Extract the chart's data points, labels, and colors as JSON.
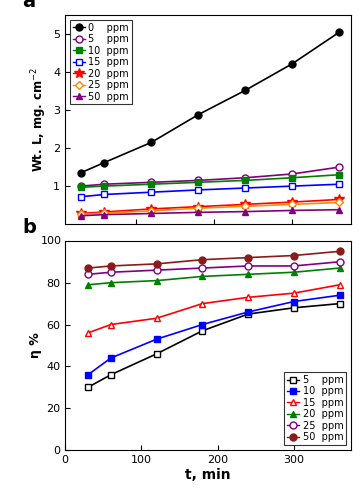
{
  "x": [
    30,
    60,
    120,
    180,
    240,
    300,
    360
  ],
  "wt_loss": {
    "0": [
      1.35,
      1.62,
      2.15,
      2.88,
      3.52,
      4.22,
      5.05
    ],
    "5": [
      1.0,
      1.05,
      1.1,
      1.15,
      1.22,
      1.32,
      1.5
    ],
    "10": [
      0.97,
      1.0,
      1.05,
      1.1,
      1.15,
      1.22,
      1.3
    ],
    "15": [
      0.72,
      0.78,
      0.84,
      0.9,
      0.95,
      1.0,
      1.05
    ],
    "20": [
      0.28,
      0.32,
      0.4,
      0.46,
      0.52,
      0.58,
      0.65
    ],
    "25": [
      0.26,
      0.29,
      0.35,
      0.42,
      0.47,
      0.52,
      0.57
    ],
    "50": [
      0.22,
      0.25,
      0.28,
      0.31,
      0.33,
      0.36,
      0.38
    ]
  },
  "eta": {
    "5": [
      30,
      36,
      46,
      57,
      65,
      68,
      70
    ],
    "10": [
      36,
      44,
      53,
      60,
      66,
      71,
      74
    ],
    "15": [
      56,
      60,
      63,
      70,
      73,
      75,
      79
    ],
    "20": [
      79,
      80,
      81,
      83,
      84,
      85,
      87
    ],
    "25": [
      84,
      85,
      86,
      87,
      88,
      88,
      90
    ],
    "50": [
      87,
      88,
      89,
      91,
      92,
      93,
      95
    ]
  },
  "wt_series": [
    {
      "key": "0",
      "color": "#000000",
      "marker": "o",
      "filled": true,
      "label": "0    ppm"
    },
    {
      "key": "5",
      "color": "#800080",
      "marker": "o",
      "filled": false,
      "label": "5    ppm"
    },
    {
      "key": "10",
      "color": "#008000",
      "marker": "s",
      "filled": true,
      "label": "10  ppm"
    },
    {
      "key": "15",
      "color": "#0000FF",
      "marker": "s",
      "filled": false,
      "label": "15  ppm"
    },
    {
      "key": "20",
      "color": "#FF0000",
      "marker": "*",
      "filled": true,
      "label": "20  ppm"
    },
    {
      "key": "25",
      "color": "#FF8C00",
      "marker": "D",
      "filled": false,
      "label": "25  ppm"
    },
    {
      "key": "50",
      "color": "#800080",
      "marker": "^",
      "filled": true,
      "label": "50  ppm"
    }
  ],
  "eta_series": [
    {
      "key": "5",
      "color": "#000000",
      "marker": "s",
      "filled": false,
      "label": "5    ppm"
    },
    {
      "key": "10",
      "color": "#0000FF",
      "marker": "s",
      "filled": true,
      "label": "10  ppm"
    },
    {
      "key": "15",
      "color": "#FF0000",
      "marker": "^",
      "filled": false,
      "label": "15  ppm"
    },
    {
      "key": "20",
      "color": "#008000",
      "marker": "^",
      "filled": true,
      "label": "20  ppm"
    },
    {
      "key": "25",
      "color": "#800080",
      "marker": "o",
      "filled": false,
      "label": "25  ppm"
    },
    {
      "key": "50",
      "color": "#8B1A1A",
      "marker": "o",
      "filled": true,
      "label": "50  ppm"
    }
  ]
}
